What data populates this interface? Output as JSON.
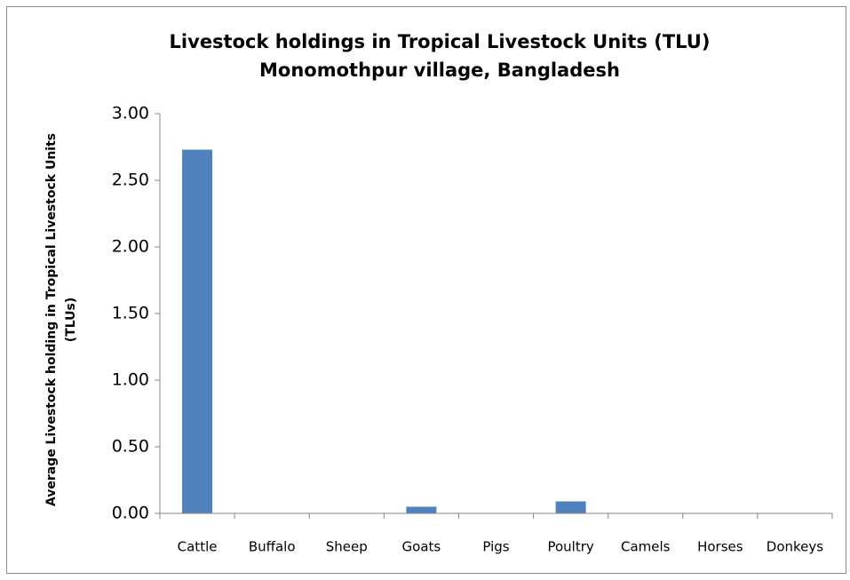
{
  "chart_data": {
    "type": "bar",
    "title": "Livestock holdings in Tropical Livestock Units (TLU)",
    "subtitle": "Monomothpur village, Bangladesh",
    "y_label": [
      "Average Livestock holding in Tropical Livestock Units",
      "(TLUs)"
    ],
    "categories": [
      "Cattle",
      "Buffalo",
      "Sheep",
      "Goats",
      "Pigs",
      "Poultry",
      "Camels",
      "Horses",
      "Donkeys"
    ],
    "values": [
      2.73,
      0,
      0,
      0.05,
      0,
      0.09,
      0,
      0,
      0
    ],
    "color": "#4f81bd",
    "ylim": [
      0,
      3
    ],
    "yticks": [
      {
        "value": 0,
        "label": "0.00"
      },
      {
        "value": 0.5,
        "label": "0.50"
      },
      {
        "value": 1,
        "label": "1.00"
      },
      {
        "value": 1.5,
        "label": "1.50"
      },
      {
        "value": 2,
        "label": "2.00"
      },
      {
        "value": 2.5,
        "label": "2.50"
      },
      {
        "value": 3,
        "label": "3.00"
      }
    ],
    "grid": false
  }
}
